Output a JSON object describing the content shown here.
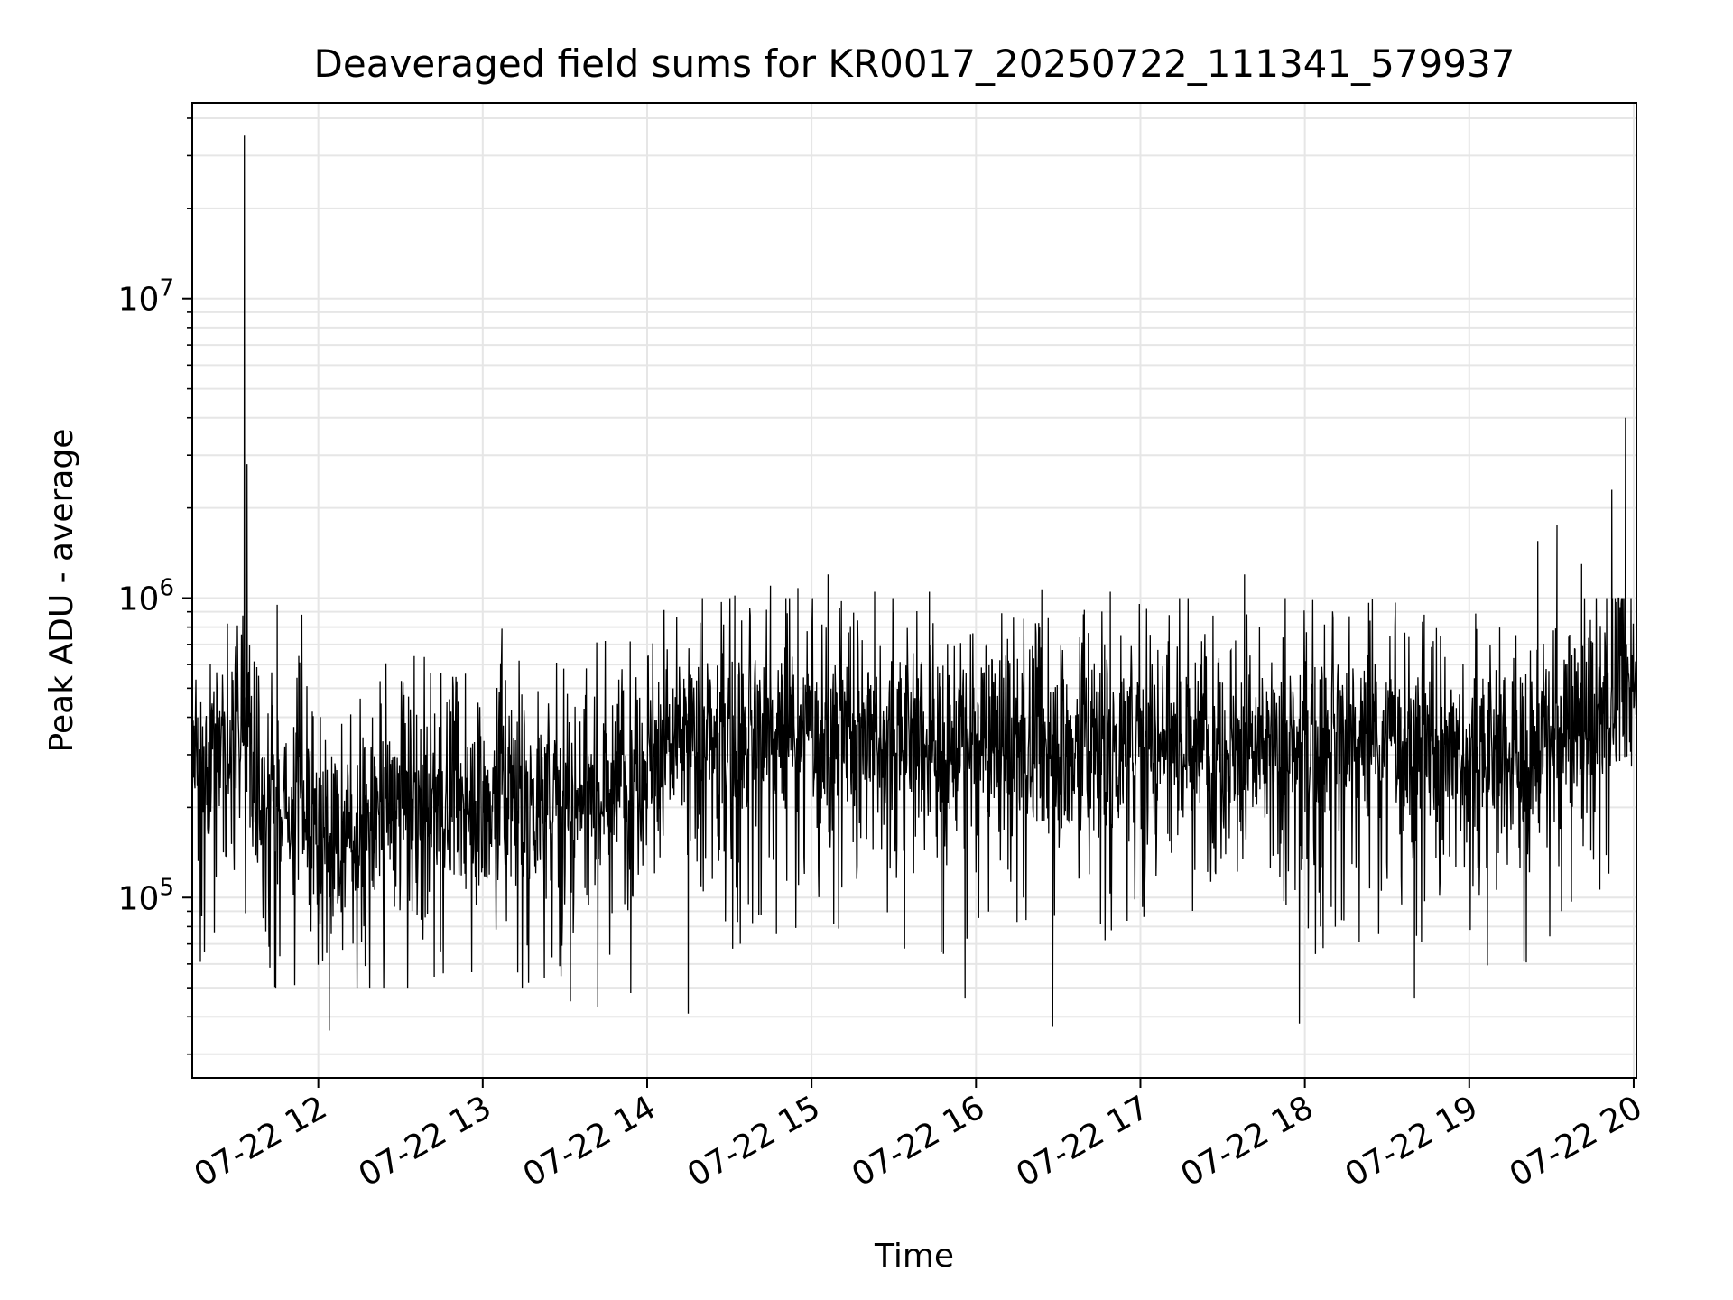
{
  "chart_data": {
    "type": "line",
    "title": "Deaveraged field sums for KR0017_20250722_111341_579937",
    "xlabel": "Time",
    "ylabel": "Peak ADU - average",
    "yscale": "log",
    "grid": true,
    "line_color": "#000000",
    "xlim": [
      "2025-07-22 11:14",
      "2025-07-22 20:01"
    ],
    "ylim": [
      25000,
      45000000
    ],
    "x_ticks": [
      {
        "value": "2025-07-22 12:00",
        "label": "07-22 12"
      },
      {
        "value": "2025-07-22 13:00",
        "label": "07-22 13"
      },
      {
        "value": "2025-07-22 14:00",
        "label": "07-22 14"
      },
      {
        "value": "2025-07-22 15:00",
        "label": "07-22 15"
      },
      {
        "value": "2025-07-22 16:00",
        "label": "07-22 16"
      },
      {
        "value": "2025-07-22 17:00",
        "label": "07-22 17"
      },
      {
        "value": "2025-07-22 18:00",
        "label": "07-22 18"
      },
      {
        "value": "2025-07-22 19:00",
        "label": "07-22 19"
      },
      {
        "value": "2025-07-22 20:00",
        "label": "07-22 20"
      }
    ],
    "y_ticks": [
      {
        "value": 100000,
        "base": "10",
        "exp": "5"
      },
      {
        "value": 1000000,
        "base": "10",
        "exp": "6"
      },
      {
        "value": 10000000,
        "base": "10",
        "exp": "7"
      }
    ],
    "series": [
      {
        "x": [
          "2025-07-22 11:14",
          "2025-07-22 11:17",
          "2025-07-22 11:20",
          "2025-07-22 11:23",
          "2025-07-22 11:26",
          "2025-07-22 11:28",
          "2025-07-22 11:30",
          "2025-07-22 11:32",
          "2025-07-22 11:35",
          "2025-07-22 11:38",
          "2025-07-22 11:42",
          "2025-07-22 11:46",
          "2025-07-22 11:50",
          "2025-07-22 11:55",
          "2025-07-22 12:00",
          "2025-07-22 12:05",
          "2025-07-22 12:10",
          "2025-07-22 12:20",
          "2025-07-22 12:30",
          "2025-07-22 12:40",
          "2025-07-22 12:50",
          "2025-07-22 13:00",
          "2025-07-22 13:10",
          "2025-07-22 13:20",
          "2025-07-22 13:30",
          "2025-07-22 13:40",
          "2025-07-22 13:50",
          "2025-07-22 14:00",
          "2025-07-22 14:10",
          "2025-07-22 14:20",
          "2025-07-22 14:30",
          "2025-07-22 14:40",
          "2025-07-22 14:50",
          "2025-07-22 15:00",
          "2025-07-22 15:10",
          "2025-07-22 15:20",
          "2025-07-22 15:30",
          "2025-07-22 15:40",
          "2025-07-22 15:50",
          "2025-07-22 16:00",
          "2025-07-22 16:10",
          "2025-07-22 16:20",
          "2025-07-22 16:30",
          "2025-07-22 16:40",
          "2025-07-22 16:50",
          "2025-07-22 17:00",
          "2025-07-22 17:10",
          "2025-07-22 17:20",
          "2025-07-22 17:30",
          "2025-07-22 17:40",
          "2025-07-22 17:50",
          "2025-07-22 18:00",
          "2025-07-22 18:10",
          "2025-07-22 18:20",
          "2025-07-22 18:30",
          "2025-07-22 18:40",
          "2025-07-22 18:50",
          "2025-07-22 19:00",
          "2025-07-22 19:10",
          "2025-07-22 19:20",
          "2025-07-22 19:30",
          "2025-07-22 19:40",
          "2025-07-22 19:45",
          "2025-07-22 19:50",
          "2025-07-22 19:55",
          "2025-07-22 20:00",
          "2025-07-22 20:01"
        ],
        "typical": [
          300000,
          260000,
          250000,
          350000,
          380000,
          380000,
          400000,
          380000,
          300000,
          210000,
          190000,
          190000,
          200000,
          210000,
          170000,
          140000,
          150000,
          190000,
          210000,
          200000,
          200000,
          200000,
          220000,
          210000,
          210000,
          230000,
          250000,
          300000,
          320000,
          330000,
          330000,
          340000,
          340000,
          330000,
          340000,
          340000,
          330000,
          330000,
          320000,
          310000,
          310000,
          300000,
          310000,
          310000,
          320000,
          330000,
          340000,
          340000,
          320000,
          300000,
          290000,
          310000,
          330000,
          320000,
          320000,
          310000,
          300000,
          290000,
          290000,
          300000,
          320000,
          340000,
          360000,
          420000,
          480000,
          520000,
          550000
        ],
        "spikes": [
          {
            "x": "2025-07-22 11:33",
            "y": 35000000
          },
          {
            "x": "2025-07-22 11:34",
            "y": 2800000
          },
          {
            "x": "2025-07-22 11:45",
            "y": 950000
          },
          {
            "x": "2025-07-22 11:54",
            "y": 880000
          },
          {
            "x": "2025-07-22 12:04",
            "y": 36000
          },
          {
            "x": "2025-07-22 12:35",
            "y": 640000
          },
          {
            "x": "2025-07-22 13:07",
            "y": 790000
          },
          {
            "x": "2025-07-22 13:32",
            "y": 45000
          },
          {
            "x": "2025-07-22 13:42",
            "y": 43000
          },
          {
            "x": "2025-07-22 13:54",
            "y": 48000
          },
          {
            "x": "2025-07-22 14:15",
            "y": 41000
          },
          {
            "x": "2025-07-22 14:32",
            "y": 1020000
          },
          {
            "x": "2025-07-22 14:45",
            "y": 1100000
          },
          {
            "x": "2025-07-22 14:55",
            "y": 1080000
          },
          {
            "x": "2025-07-22 15:06",
            "y": 1200000
          },
          {
            "x": "2025-07-22 15:23",
            "y": 1050000
          },
          {
            "x": "2025-07-22 15:43",
            "y": 1050000
          },
          {
            "x": "2025-07-22 15:56",
            "y": 46000
          },
          {
            "x": "2025-07-22 16:24",
            "y": 1070000
          },
          {
            "x": "2025-07-22 16:28",
            "y": 37000
          },
          {
            "x": "2025-07-22 16:49",
            "y": 1050000
          },
          {
            "x": "2025-07-22 17:38",
            "y": 1200000
          },
          {
            "x": "2025-07-22 17:58",
            "y": 38000
          },
          {
            "x": "2025-07-22 18:40",
            "y": 46000
          },
          {
            "x": "2025-07-22 19:25",
            "y": 1550000
          },
          {
            "x": "2025-07-22 19:32",
            "y": 1750000
          },
          {
            "x": "2025-07-22 19:41",
            "y": 1300000
          },
          {
            "x": "2025-07-22 19:52",
            "y": 2300000
          },
          {
            "x": "2025-07-22 19:57",
            "y": 4000000
          }
        ]
      }
    ]
  }
}
